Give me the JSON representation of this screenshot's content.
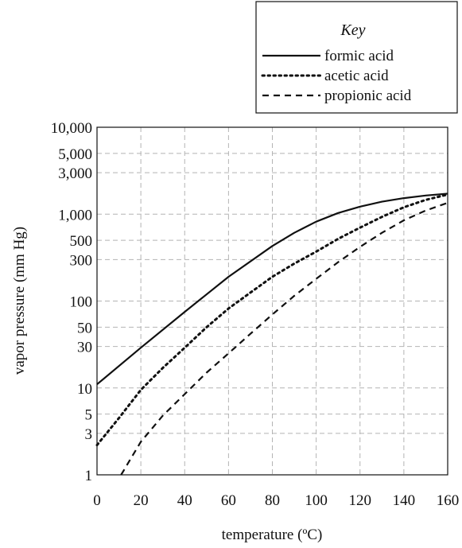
{
  "chart_data": {
    "type": "line",
    "xlabel": "temperature (ºC)",
    "ylabel": "vapor pressure (mm Hg)",
    "xlim": [
      0,
      160
    ],
    "ylim": [
      1,
      10000
    ],
    "yscale": "log",
    "grid": true,
    "x_ticks": [
      0,
      20,
      40,
      60,
      80,
      100,
      120,
      140,
      160
    ],
    "x_tick_labels": [
      "0",
      "20",
      "40",
      "60",
      "80",
      "100",
      "120",
      "140",
      "160"
    ],
    "y_ticks": [
      1,
      3,
      5,
      10,
      30,
      50,
      100,
      300,
      500,
      1000,
      3000,
      5000,
      10000
    ],
    "y_tick_labels": [
      "1",
      "3",
      "5",
      "10",
      "30",
      "50",
      "100",
      "300",
      "500",
      "1,000",
      "3,000",
      "5,000",
      "10,000"
    ],
    "legend": {
      "title": "Key",
      "placement": "top-right, above plot"
    },
    "series": [
      {
        "name": "formic acid",
        "style": "solid",
        "x": [
          0,
          20,
          40,
          60,
          80,
          90,
          100,
          110,
          120,
          130,
          140,
          150,
          160
        ],
        "y": [
          11,
          29,
          75,
          190,
          430,
          610,
          820,
          1030,
          1220,
          1390,
          1530,
          1640,
          1720
        ]
      },
      {
        "name": "acetic acid",
        "style": "dotted",
        "x": [
          0,
          10,
          20,
          30,
          40,
          50,
          60,
          70,
          80,
          90,
          100,
          110,
          120,
          130,
          140,
          150,
          160
        ],
        "y": [
          2.2,
          4.5,
          9.5,
          17,
          29,
          50,
          82,
          125,
          190,
          270,
          370,
          520,
          700,
          930,
          1200,
          1460,
          1680
        ]
      },
      {
        "name": "propionic acid",
        "style": "dashed",
        "x": [
          11,
          20,
          30,
          40,
          50,
          60,
          70,
          80,
          90,
          100,
          110,
          120,
          130,
          140,
          150,
          160
        ],
        "y": [
          1,
          2.4,
          4.8,
          8.5,
          15,
          25,
          42,
          70,
          115,
          180,
          280,
          420,
          610,
          850,
          1100,
          1350
        ]
      }
    ]
  }
}
